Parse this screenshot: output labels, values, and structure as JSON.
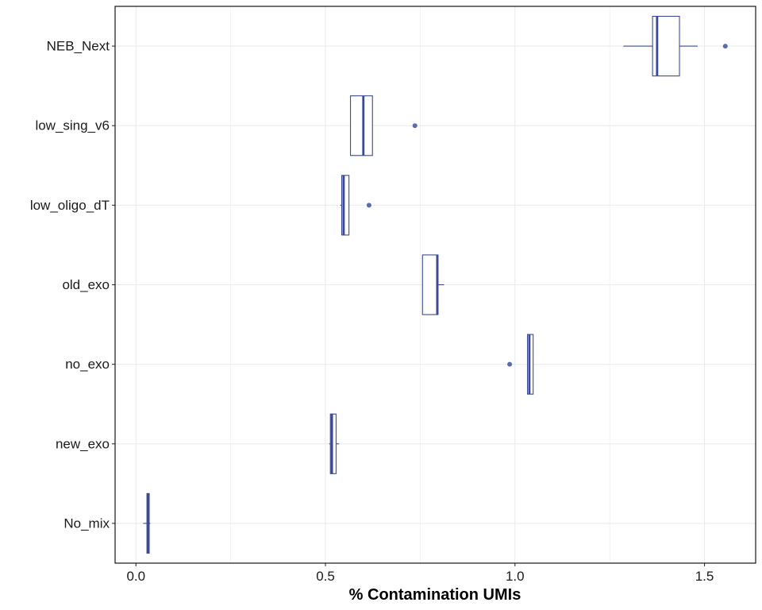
{
  "chart_data": {
    "type": "boxplot",
    "orientation": "horizontal",
    "title": "",
    "xlabel": "% Contamination UMIs",
    "ylabel": "",
    "xlim": [
      -0.055,
      1.635
    ],
    "x_ticks": [
      0.0,
      0.5,
      1.0,
      1.5
    ],
    "x_tick_labels": [
      "0.0",
      "0.5",
      "1.0",
      "1.5"
    ],
    "grid": true,
    "categories": [
      "NEB_Next",
      "low_sing_v6",
      "low_oligo_dT",
      "old_exo",
      "no_exo",
      "new_exo",
      "No_mix"
    ],
    "boxes": [
      {
        "category": "NEB_Next",
        "whisker_low": 1.286,
        "q1": 1.363,
        "median": 1.375,
        "q3": 1.434,
        "whisker_high": 1.482,
        "outliers": [
          1.555
        ]
      },
      {
        "category": "low_sing_v6",
        "whisker_low": 0.566,
        "q1": 0.566,
        "median": 0.6,
        "q3": 0.624,
        "whisker_high": 0.624,
        "outliers": [
          0.736
        ]
      },
      {
        "category": "low_oligo_dT",
        "whisker_low": 0.539,
        "q1": 0.543,
        "median": 0.548,
        "q3": 0.562,
        "whisker_high": 0.562,
        "outliers": [
          0.615
        ]
      },
      {
        "category": "old_exo",
        "whisker_low": 0.756,
        "q1": 0.756,
        "median": 0.795,
        "q3": 0.797,
        "whisker_high": 0.813,
        "outliers": []
      },
      {
        "category": "no_exo",
        "whisker_low": 1.033,
        "q1": 1.033,
        "median": 1.038,
        "q3": 1.048,
        "whisker_high": 1.048,
        "outliers": [
          0.986
        ]
      },
      {
        "category": "new_exo",
        "whisker_low": 0.51,
        "q1": 0.513,
        "median": 0.517,
        "q3": 0.528,
        "whisker_high": 0.536,
        "outliers": []
      },
      {
        "category": "No_mix",
        "whisker_low": 0.019,
        "q1": 0.029,
        "median": 0.032,
        "q3": 0.035,
        "whisker_high": 0.038,
        "outliers": []
      }
    ],
    "colors": {
      "box_stroke": "#3c4a96",
      "outlier_fill": "#5b6bab",
      "grid": "#ebebeb",
      "panel_border": "#000000"
    }
  }
}
